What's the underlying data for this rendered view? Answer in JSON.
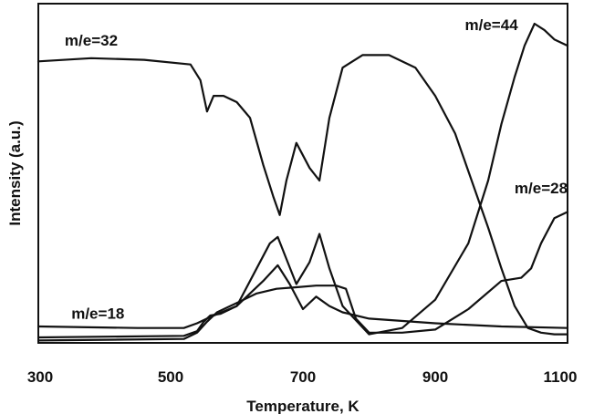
{
  "chart_data": {
    "type": "line",
    "xlabel": "Temperature, K",
    "ylabel": "Intensity (a.u.)",
    "xlim": [
      300,
      1100
    ],
    "ylim": [
      0,
      100
    ],
    "xticks": [
      300,
      500,
      700,
      900,
      1100
    ],
    "grid": false,
    "legend": "none",
    "series": [
      {
        "name": "m/e=32",
        "x": [
          300,
          380,
          460,
          530,
          545,
          555,
          565,
          580,
          600,
          620,
          640,
          655,
          665,
          675,
          690,
          710,
          725,
          740,
          760,
          790,
          830,
          870,
          900,
          930,
          955,
          980,
          1000,
          1020,
          1040,
          1060,
          1080,
          1100
        ],
        "y": [
          88,
          89,
          88.5,
          87,
          82,
          72,
          77,
          77,
          75,
          70,
          55,
          45,
          39,
          50,
          62,
          54,
          50,
          70,
          86,
          90,
          90,
          86,
          77,
          65,
          50,
          35,
          22,
          10,
          3,
          1.5,
          1,
          1
        ]
      },
      {
        "name": "m/e=44",
        "x": [
          300,
          520,
          540,
          550,
          560,
          575,
          600,
          630,
          650,
          662,
          675,
          690,
          710,
          725,
          740,
          760,
          800,
          850,
          900,
          950,
          980,
          1000,
          1020,
          1035,
          1050,
          1065,
          1080,
          1100
        ],
        "y": [
          0,
          0.5,
          2,
          5,
          7,
          7.5,
          10,
          22,
          30,
          32,
          25,
          17,
          24,
          33,
          22,
          10,
          1,
          3,
          12,
          30,
          50,
          68,
          83,
          93,
          100,
          98,
          95,
          93
        ]
      },
      {
        "name": "m/e=28",
        "x": [
          300,
          520,
          540,
          555,
          570,
          600,
          630,
          660,
          690,
          720,
          750,
          765,
          780,
          800,
          850,
          900,
          950,
          1000,
          1030,
          1045,
          1060,
          1080,
          1100
        ],
        "y": [
          -1,
          -0.5,
          1.5,
          5,
          8,
          11,
          14,
          15.5,
          16,
          16.5,
          16.5,
          15.5,
          6,
          1.5,
          1.5,
          2.5,
          9,
          18,
          19,
          22,
          30,
          38,
          40
        ]
      },
      {
        "name": "m/e=18",
        "x": [
          300,
          450,
          520,
          540,
          560,
          600,
          640,
          662,
          680,
          700,
          720,
          740,
          760,
          800,
          900,
          1000,
          1100
        ],
        "y": [
          3.5,
          3,
          3,
          4.5,
          6.5,
          10,
          18,
          23,
          17,
          9,
          13,
          10,
          8,
          6,
          4.5,
          3.5,
          3
        ]
      }
    ],
    "annotations": [
      {
        "text": "m/e=32",
        "x": 380,
        "y": 93
      },
      {
        "text": "m/e=44",
        "x": 985,
        "y": 98
      },
      {
        "text": "m/e=28",
        "x": 1060,
        "y": 46
      },
      {
        "text": "m/e=18",
        "x": 390,
        "y": 6
      }
    ]
  }
}
